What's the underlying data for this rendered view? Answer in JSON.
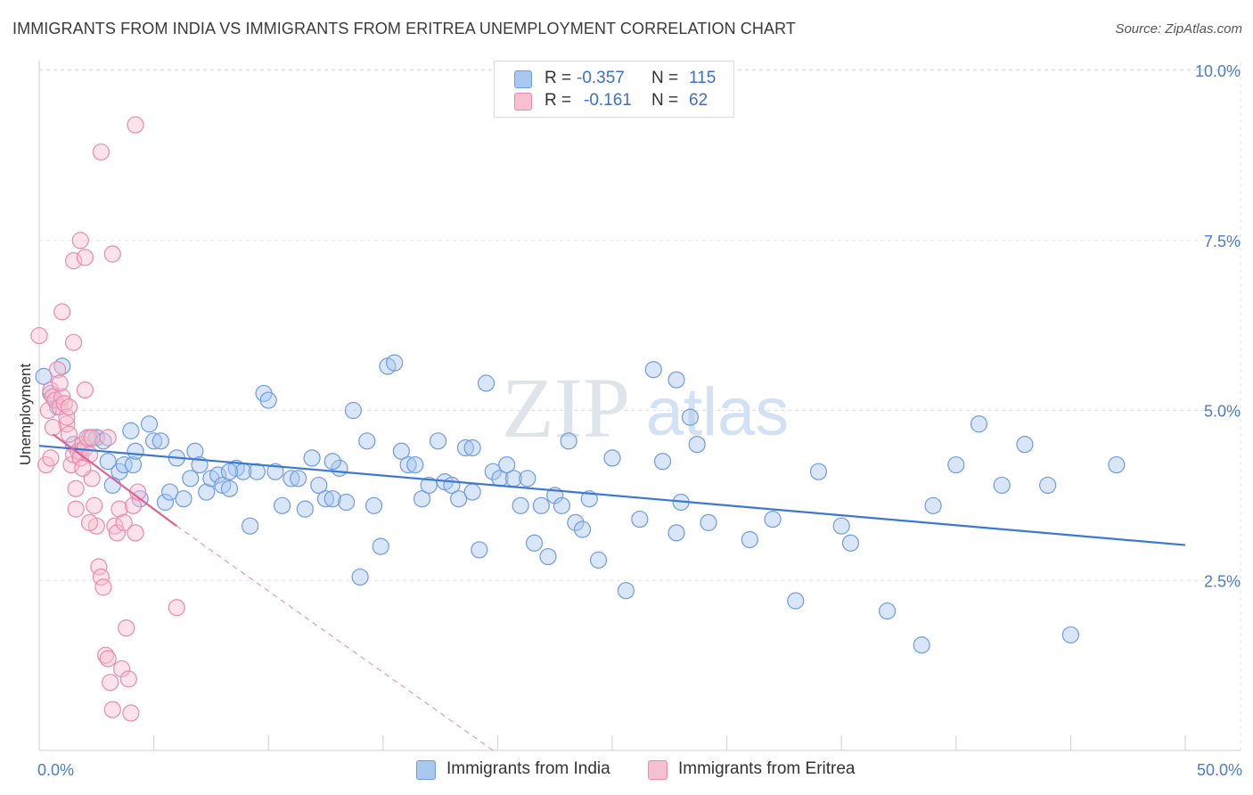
{
  "title": "IMMIGRANTS FROM INDIA VS IMMIGRANTS FROM ERITREA UNEMPLOYMENT CORRELATION CHART",
  "source": "Source: ZipAtlas.com",
  "watermark": {
    "zip": "ZIP",
    "atlas": "atlas"
  },
  "legend_stats": [
    {
      "r_label": "R =",
      "r_value": "-0.357",
      "n_label": "N =",
      "n_value": "115",
      "color": "#a9c8f0",
      "border": "#6f9be0"
    },
    {
      "r_label": "R =",
      "r_value": "-0.161",
      "n_label": "N =",
      "n_value": "62",
      "color": "#f8bfd1",
      "border": "#e98aa9"
    }
  ],
  "chart_data": {
    "type": "scatter",
    "title": "IMMIGRANTS FROM INDIA VS IMMIGRANTS FROM ERITREA UNEMPLOYMENT CORRELATION CHART",
    "xlabel": "",
    "ylabel": "Unemployment",
    "xlim": [
      0,
      50
    ],
    "ylim": [
      0,
      10.5
    ],
    "x_ticks": [
      "0.0%",
      "50.0%"
    ],
    "y_ticks": [
      {
        "value": 2.5,
        "label": "2.5%"
      },
      {
        "value": 5.0,
        "label": "5.0%"
      },
      {
        "value": 7.5,
        "label": "7.5%"
      },
      {
        "value": 10.0,
        "label": "10.0%"
      }
    ],
    "grid": true,
    "legend_position": "bottom",
    "series": [
      {
        "name": "Immigrants from India",
        "color": "#a9c8f0",
        "stroke": "#6f9be0",
        "trend": {
          "x": [
            0,
            50
          ],
          "y": [
            4.48,
            3.02
          ],
          "color": "#3b78d4"
        },
        "points": [
          [
            0.2,
            5.5
          ],
          [
            0.5,
            5.25
          ],
          [
            0.8,
            5.05
          ],
          [
            1.0,
            5.65
          ],
          [
            1.5,
            4.5
          ],
          [
            1.8,
            4.4
          ],
          [
            2.2,
            4.6
          ],
          [
            2.5,
            4.6
          ],
          [
            2.8,
            4.55
          ],
          [
            3.0,
            4.25
          ],
          [
            3.2,
            3.9
          ],
          [
            3.5,
            4.1
          ],
          [
            3.7,
            4.2
          ],
          [
            4.0,
            4.7
          ],
          [
            4.1,
            4.2
          ],
          [
            4.2,
            4.4
          ],
          [
            4.4,
            3.7
          ],
          [
            4.8,
            4.8
          ],
          [
            5.0,
            4.55
          ],
          [
            5.3,
            4.55
          ],
          [
            5.5,
            3.65
          ],
          [
            5.7,
            3.8
          ],
          [
            6.0,
            4.3
          ],
          [
            6.3,
            3.7
          ],
          [
            6.6,
            4.0
          ],
          [
            6.8,
            4.4
          ],
          [
            7.0,
            4.2
          ],
          [
            7.3,
            3.8
          ],
          [
            7.5,
            4.0
          ],
          [
            7.8,
            4.05
          ],
          [
            8.0,
            3.9
          ],
          [
            8.3,
            3.85
          ],
          [
            8.6,
            4.15
          ],
          [
            8.9,
            4.1
          ],
          [
            9.2,
            3.3
          ],
          [
            9.5,
            4.1
          ],
          [
            9.8,
            5.25
          ],
          [
            10.0,
            5.15
          ],
          [
            10.3,
            4.1
          ],
          [
            10.6,
            3.6
          ],
          [
            11.0,
            4.0
          ],
          [
            11.3,
            4.0
          ],
          [
            11.6,
            3.55
          ],
          [
            11.9,
            4.3
          ],
          [
            12.2,
            3.9
          ],
          [
            12.5,
            3.7
          ],
          [
            12.8,
            3.7
          ],
          [
            13.1,
            4.15
          ],
          [
            13.4,
            3.65
          ],
          [
            13.7,
            5.0
          ],
          [
            14.0,
            2.55
          ],
          [
            14.3,
            4.55
          ],
          [
            14.6,
            3.6
          ],
          [
            14.9,
            3.0
          ],
          [
            15.2,
            5.65
          ],
          [
            15.5,
            5.7
          ],
          [
            15.8,
            4.4
          ],
          [
            16.1,
            4.2
          ],
          [
            16.4,
            4.2
          ],
          [
            16.7,
            3.7
          ],
          [
            17.0,
            3.9
          ],
          [
            17.4,
            4.55
          ],
          [
            17.7,
            3.95
          ],
          [
            18.0,
            3.9
          ],
          [
            18.3,
            3.7
          ],
          [
            18.6,
            4.45
          ],
          [
            18.9,
            3.8
          ],
          [
            19.2,
            2.95
          ],
          [
            19.5,
            5.4
          ],
          [
            19.8,
            4.1
          ],
          [
            20.1,
            4.0
          ],
          [
            20.4,
            4.2
          ],
          [
            20.7,
            4.0
          ],
          [
            21.0,
            3.6
          ],
          [
            21.3,
            4.0
          ],
          [
            21.6,
            3.05
          ],
          [
            21.9,
            3.6
          ],
          [
            22.2,
            2.85
          ],
          [
            22.5,
            3.75
          ],
          [
            22.8,
            3.6
          ],
          [
            23.1,
            4.55
          ],
          [
            23.4,
            3.35
          ],
          [
            23.7,
            3.25
          ],
          [
            24.0,
            3.7
          ],
          [
            24.4,
            2.8
          ],
          [
            25.0,
            4.3
          ],
          [
            25.6,
            2.35
          ],
          [
            26.2,
            3.4
          ],
          [
            26.8,
            5.6
          ],
          [
            27.2,
            4.25
          ],
          [
            27.8,
            3.2
          ],
          [
            28.0,
            3.65
          ],
          [
            28.4,
            4.9
          ],
          [
            28.7,
            4.5
          ],
          [
            29.2,
            3.35
          ],
          [
            31.0,
            3.1
          ],
          [
            32.0,
            3.4
          ],
          [
            33.0,
            2.2
          ],
          [
            34.0,
            4.1
          ],
          [
            35.0,
            3.3
          ],
          [
            35.4,
            3.05
          ],
          [
            37.0,
            2.05
          ],
          [
            38.5,
            1.55
          ],
          [
            39.0,
            3.6
          ],
          [
            40.0,
            4.2
          ],
          [
            41.0,
            4.8
          ],
          [
            42.0,
            3.9
          ],
          [
            43.0,
            4.5
          ],
          [
            44.0,
            3.9
          ],
          [
            45.0,
            1.7
          ],
          [
            47.0,
            4.2
          ],
          [
            27.8,
            5.45
          ],
          [
            18.9,
            4.45
          ],
          [
            12.8,
            4.25
          ],
          [
            8.3,
            4.1
          ]
        ]
      },
      {
        "name": "Immigrants from Eritrea",
        "color": "#f8bfd1",
        "stroke": "#e98aa9",
        "trend": {
          "x": [
            0.6,
            6.0
          ],
          "y": [
            4.65,
            3.3
          ],
          "color": "#e0608f"
        },
        "trend_ext": {
          "x": [
            6.0,
            19.8
          ],
          "y": [
            3.3,
            0.0
          ],
          "color": "#e898b3"
        },
        "points": [
          [
            0.0,
            6.1
          ],
          [
            0.3,
            4.2
          ],
          [
            0.4,
            5.0
          ],
          [
            0.5,
            5.3
          ],
          [
            0.6,
            5.2
          ],
          [
            0.7,
            5.15
          ],
          [
            0.8,
            5.6
          ],
          [
            0.9,
            5.05
          ],
          [
            1.0,
            5.2
          ],
          [
            1.1,
            5.1
          ],
          [
            1.2,
            4.8
          ],
          [
            1.3,
            4.65
          ],
          [
            1.4,
            4.2
          ],
          [
            1.5,
            4.35
          ],
          [
            1.6,
            3.85
          ],
          [
            1.7,
            4.4
          ],
          [
            1.8,
            4.3
          ],
          [
            1.9,
            4.5
          ],
          [
            2.0,
            4.45
          ],
          [
            2.1,
            4.6
          ],
          [
            2.2,
            4.35
          ],
          [
            2.3,
            4.0
          ],
          [
            2.4,
            3.6
          ],
          [
            2.5,
            3.3
          ],
          [
            2.6,
            2.7
          ],
          [
            2.7,
            2.55
          ],
          [
            2.8,
            2.4
          ],
          [
            2.9,
            1.4
          ],
          [
            3.0,
            1.35
          ],
          [
            3.1,
            1.0
          ],
          [
            3.2,
            0.6
          ],
          [
            3.3,
            3.3
          ],
          [
            3.4,
            3.2
          ],
          [
            3.5,
            3.55
          ],
          [
            3.6,
            1.2
          ],
          [
            3.7,
            3.35
          ],
          [
            3.8,
            1.8
          ],
          [
            3.9,
            1.05
          ],
          [
            4.0,
            0.55
          ],
          [
            4.1,
            3.6
          ],
          [
            4.2,
            3.2
          ],
          [
            1.0,
            6.45
          ],
          [
            1.5,
            7.2
          ],
          [
            1.8,
            7.5
          ],
          [
            2.0,
            7.25
          ],
          [
            2.7,
            8.8
          ],
          [
            3.2,
            7.3
          ],
          [
            4.2,
            9.2
          ],
          [
            4.3,
            3.8
          ],
          [
            6.0,
            2.1
          ],
          [
            1.5,
            6.0
          ],
          [
            2.0,
            5.3
          ],
          [
            0.9,
            5.4
          ],
          [
            1.2,
            4.9
          ],
          [
            2.3,
            4.6
          ],
          [
            0.6,
            4.75
          ],
          [
            1.9,
            4.15
          ],
          [
            3.0,
            4.6
          ],
          [
            1.6,
            3.55
          ],
          [
            2.2,
            3.35
          ],
          [
            0.5,
            4.3
          ],
          [
            1.3,
            5.05
          ]
        ]
      }
    ]
  },
  "legend_bottom": [
    {
      "label": "Immigrants from India",
      "color": "#a9c8f0",
      "border": "#6f9be0"
    },
    {
      "label": "Immigrants from Eritrea",
      "color": "#f8bfd1",
      "border": "#e98aa9"
    }
  ]
}
